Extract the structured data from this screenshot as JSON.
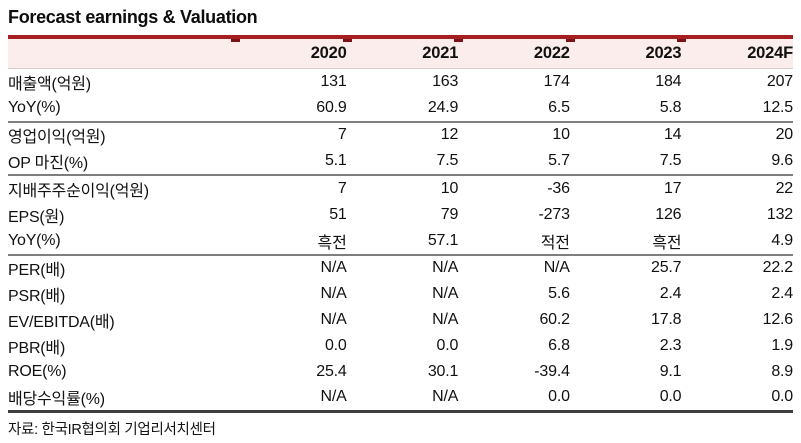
{
  "title": "Forecast earnings & Valuation",
  "source_note": "자료: 한국IR협의회 기업리서치센터",
  "colors": {
    "top_rule_red": "#a51e22",
    "rule_tick_dark_red": "#7c1215",
    "header_pink_bg": "#fbedeb",
    "section_divider_gray": "#7e7e7e",
    "bottom_border_dark": "#3d3d3d",
    "text": "#111111"
  },
  "table": {
    "columns": [
      "",
      "2020",
      "2021",
      "2022",
      "2023",
      "2024F"
    ],
    "rows": [
      {
        "label": "매출액(억원)",
        "values": [
          "131",
          "163",
          "174",
          "184",
          "207"
        ],
        "section_end": false
      },
      {
        "label": "YoY(%)",
        "values": [
          "60.9",
          "24.9",
          "6.5",
          "5.8",
          "12.5"
        ],
        "section_end": true
      },
      {
        "label": "영업이익(억원)",
        "values": [
          "7",
          "12",
          "10",
          "14",
          "20"
        ],
        "section_end": false
      },
      {
        "label": "OP 마진(%)",
        "values": [
          "5.1",
          "7.5",
          "5.7",
          "7.5",
          "9.6"
        ],
        "section_end": true
      },
      {
        "label": "지배주주순이익(억원)",
        "values": [
          "7",
          "10",
          "-36",
          "17",
          "22"
        ],
        "section_end": false
      },
      {
        "label": "EPS(원)",
        "values": [
          "51",
          "79",
          "-273",
          "126",
          "132"
        ],
        "section_end": false
      },
      {
        "label": "YoY(%)",
        "values": [
          "흑전",
          "57.1",
          "적전",
          "흑전",
          "4.9"
        ],
        "section_end": true
      },
      {
        "label": "PER(배)",
        "values": [
          "N/A",
          "N/A",
          "N/A",
          "25.7",
          "22.2"
        ],
        "section_end": false
      },
      {
        "label": "PSR(배)",
        "values": [
          "N/A",
          "N/A",
          "5.6",
          "2.4",
          "2.4"
        ],
        "section_end": false
      },
      {
        "label": "EV/EBITDA(배)",
        "values": [
          "N/A",
          "N/A",
          "60.2",
          "17.8",
          "12.6"
        ],
        "section_end": false
      },
      {
        "label": "PBR(배)",
        "values": [
          "0.0",
          "0.0",
          "6.8",
          "2.3",
          "1.9"
        ],
        "section_end": false
      },
      {
        "label": "ROE(%)",
        "values": [
          "25.4",
          "30.1",
          "-39.4",
          "9.1",
          "8.9"
        ],
        "section_end": false
      },
      {
        "label": "배당수익률(%)",
        "values": [
          "N/A",
          "N/A",
          "0.0",
          "0.0",
          "0.0"
        ],
        "section_end": false
      }
    ]
  }
}
